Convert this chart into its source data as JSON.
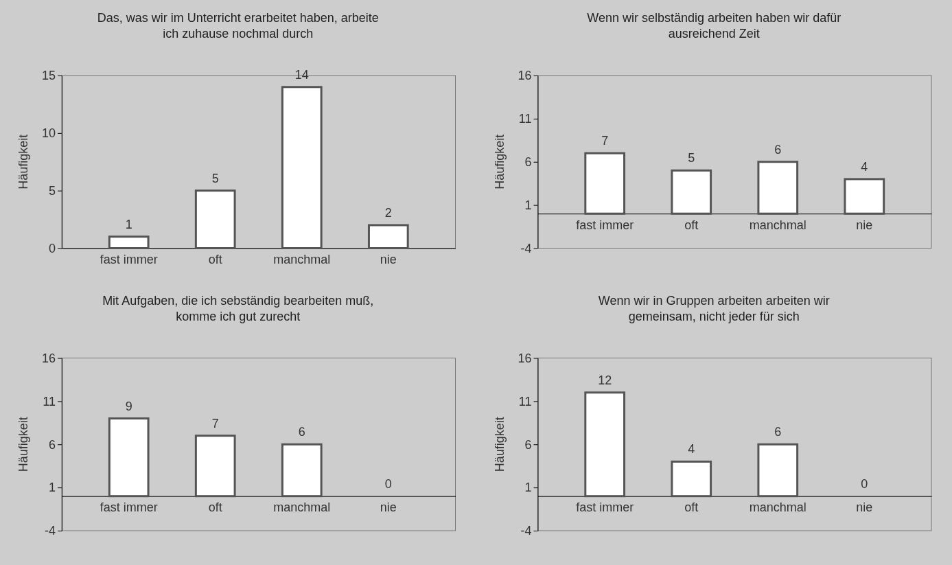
{
  "chart_data": [
    {
      "type": "bar",
      "title": "Das, was wir im Unterricht erarbeitet haben, arbeite ich zuhause nochmal durch",
      "ylabel": "Häufigkeit",
      "categories": [
        "fast immer",
        "oft",
        "manchmal",
        "nie"
      ],
      "values": [
        1,
        5,
        14,
        2
      ],
      "color": "#ffffff",
      "ylim": [
        0,
        15
      ],
      "yticks": [
        0,
        5,
        10,
        15
      ],
      "data_labels": true
    },
    {
      "type": "bar",
      "title": "Wenn wir selbständig arbeiten haben wir dafür ausreichend Zeit",
      "ylabel": "Häufigkeit",
      "categories": [
        "fast immer",
        "oft",
        "manchmal",
        "nie"
      ],
      "values": [
        7,
        5,
        6,
        4
      ],
      "color": "#ffffff",
      "ylim": [
        -4,
        16
      ],
      "yticks": [
        -4,
        1,
        6,
        11,
        16
      ],
      "data_labels": true
    },
    {
      "type": "bar",
      "title": "Mit Aufgaben, die ich sebständig bearbeiten muß, komme ich gut zurecht",
      "ylabel": "Häufigkeit",
      "categories": [
        "fast immer",
        "oft",
        "manchmal",
        "nie"
      ],
      "values": [
        9,
        7,
        6,
        0
      ],
      "color": "#ffffff",
      "ylim": [
        -4,
        16
      ],
      "yticks": [
        -4,
        1,
        6,
        11,
        16
      ],
      "data_labels": true
    },
    {
      "type": "bar",
      "title": "Wenn wir in Gruppen arbeiten arbeiten wir gemeinsam, nicht jeder für sich",
      "ylabel": "Häufigkeit",
      "categories": [
        "fast immer",
        "oft",
        "manchmal",
        "nie"
      ],
      "values": [
        12,
        4,
        6,
        0
      ],
      "color": "#ffffff",
      "ylim": [
        -4,
        16
      ],
      "yticks": [
        -4,
        1,
        6,
        11,
        16
      ],
      "data_labels": true
    }
  ]
}
